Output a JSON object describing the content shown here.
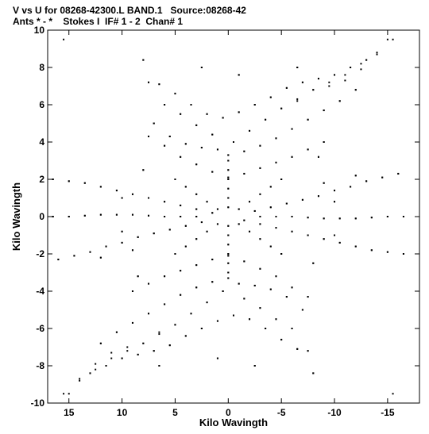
{
  "title": "V vs U for 08268-42300.L BAND.1   Source:08268-42",
  "subtitle": "Ants * - *    Stokes I  IF# 1 - 2  Chan# 1",
  "chart_data": {
    "type": "scatter",
    "xlabel": "Kilo Wavingth",
    "ylabel": "Kilo Wavingth",
    "xlim": [
      17,
      -18
    ],
    "ylim": [
      -10,
      10
    ],
    "x_reversed": true,
    "grid": false,
    "xticks": [
      15,
      10,
      5,
      0,
      -5,
      -10,
      -15
    ],
    "xtick_labels": [
      "15",
      "10",
      "5",
      "0",
      "-5",
      "-10",
      "-15"
    ],
    "yticks": [
      -10,
      -8,
      -6,
      -4,
      -2,
      0,
      2,
      4,
      6,
      8,
      10
    ],
    "ytick_labels": [
      "-10",
      "-8",
      "-6",
      "-4",
      "-2",
      "0",
      "2",
      "4",
      "6",
      "8",
      "10"
    ],
    "marker_color": "#000000",
    "points": [
      [
        -15.5,
        9.5
      ],
      [
        -14.0,
        8.7
      ],
      [
        -12.5,
        7.9
      ],
      [
        -11.0,
        7.3
      ],
      [
        -9.5,
        7.0
      ],
      [
        -8.0,
        6.8
      ],
      [
        -6.5,
        6.2
      ],
      [
        -5.0,
        5.8
      ],
      [
        -3.5,
        5.2
      ],
      [
        -2.0,
        4.6
      ],
      [
        -0.5,
        4.0
      ],
      [
        1.0,
        3.6
      ],
      [
        2.5,
        3.7
      ],
      [
        4.0,
        3.9
      ],
      [
        5.5,
        4.3
      ],
      [
        7.0,
        5.0
      ],
      [
        8.0,
        8.4
      ],
      [
        7.5,
        7.2
      ],
      [
        -13.0,
        8.4
      ],
      [
        -11.5,
        8.0
      ],
      [
        -10.0,
        7.6
      ],
      [
        -8.5,
        7.4
      ],
      [
        -7.0,
        7.2
      ],
      [
        -5.5,
        6.9
      ],
      [
        -4.0,
        6.4
      ],
      [
        -2.5,
        6.0
      ],
      [
        -1.0,
        5.6
      ],
      [
        0.5,
        5.3
      ],
      [
        2.0,
        5.5
      ],
      [
        3.5,
        6.0
      ],
      [
        5.0,
        6.6
      ],
      [
        6.5,
        7.1
      ],
      [
        -12.0,
        6.8
      ],
      [
        -10.5,
        6.2
      ],
      [
        -9.0,
        5.7
      ],
      [
        -7.5,
        5.2
      ],
      [
        -6.0,
        4.7
      ],
      [
        -4.5,
        4.2
      ],
      [
        -3.0,
        3.8
      ],
      [
        -1.5,
        3.5
      ],
      [
        0.0,
        3.3
      ],
      [
        1.5,
        4.4
      ],
      [
        3.0,
        4.9
      ],
      [
        4.5,
        5.5
      ],
      [
        6.0,
        6.0
      ],
      [
        -9.0,
        4.0
      ],
      [
        -7.5,
        3.6
      ],
      [
        -6.0,
        3.2
      ],
      [
        -4.5,
        2.9
      ],
      [
        -3.0,
        2.6
      ],
      [
        -1.5,
        2.3
      ],
      [
        0.0,
        2.1
      ],
      [
        1.5,
        2.4
      ],
      [
        3.0,
        2.8
      ],
      [
        4.5,
        3.2
      ],
      [
        6.0,
        3.8
      ],
      [
        7.5,
        4.3
      ],
      [
        -15.5,
        -9.5
      ],
      [
        15.0,
        -9.5
      ],
      [
        14.0,
        -8.8
      ],
      [
        12.5,
        -8.2
      ],
      [
        11.0,
        -7.6
      ],
      [
        9.5,
        -7.2
      ],
      [
        8.0,
        -6.8
      ],
      [
        6.5,
        -6.3
      ],
      [
        5.0,
        -5.8
      ],
      [
        3.5,
        -5.2
      ],
      [
        2.0,
        -4.6
      ],
      [
        0.5,
        -4.0
      ],
      [
        -1.0,
        -3.6
      ],
      [
        -2.5,
        -3.7
      ],
      [
        -4.0,
        -3.9
      ],
      [
        -5.5,
        -4.3
      ],
      [
        -7.0,
        -5.0
      ],
      [
        -8.0,
        -8.4
      ],
      [
        -7.5,
        -7.2
      ],
      [
        13.0,
        -8.4
      ],
      [
        11.5,
        -8.0
      ],
      [
        10.0,
        -7.6
      ],
      [
        8.5,
        -7.4
      ],
      [
        7.0,
        -7.2
      ],
      [
        5.5,
        -6.9
      ],
      [
        4.0,
        -6.4
      ],
      [
        2.5,
        -6.0
      ],
      [
        1.0,
        -5.6
      ],
      [
        -0.5,
        -5.3
      ],
      [
        -2.0,
        -5.5
      ],
      [
        -3.5,
        -6.0
      ],
      [
        -5.0,
        -6.6
      ],
      [
        -6.5,
        -7.1
      ],
      [
        12.0,
        -6.8
      ],
      [
        10.5,
        -6.2
      ],
      [
        9.0,
        -5.7
      ],
      [
        7.5,
        -5.2
      ],
      [
        6.0,
        -4.7
      ],
      [
        4.5,
        -4.2
      ],
      [
        3.0,
        -3.8
      ],
      [
        1.5,
        -3.5
      ],
      [
        0.0,
        -3.3
      ],
      [
        -1.5,
        -4.4
      ],
      [
        -3.0,
        -4.9
      ],
      [
        -4.5,
        -5.5
      ],
      [
        -6.0,
        -6.0
      ],
      [
        9.0,
        -4.0
      ],
      [
        7.5,
        -3.6
      ],
      [
        6.0,
        -3.2
      ],
      [
        4.5,
        -2.9
      ],
      [
        3.0,
        -2.6
      ],
      [
        1.5,
        -2.3
      ],
      [
        0.0,
        -2.1
      ],
      [
        -1.5,
        -2.4
      ],
      [
        -3.0,
        -2.8
      ],
      [
        -4.5,
        -3.2
      ],
      [
        -6.0,
        -3.8
      ],
      [
        -7.5,
        -4.3
      ],
      [
        16.5,
        2.0
      ],
      [
        15.0,
        1.9
      ],
      [
        13.5,
        1.8
      ],
      [
        12.0,
        1.6
      ],
      [
        10.5,
        1.4
      ],
      [
        9.0,
        1.2
      ],
      [
        7.5,
        1.0
      ],
      [
        6.0,
        0.8
      ],
      [
        4.5,
        0.6
      ],
      [
        3.0,
        0.4
      ],
      [
        1.5,
        0.2
      ],
      [
        -1.5,
        -0.2
      ],
      [
        -3.0,
        -0.4
      ],
      [
        -4.5,
        -0.6
      ],
      [
        -6.0,
        -0.8
      ],
      [
        -7.5,
        -1.0
      ],
      [
        -9.0,
        -1.2
      ],
      [
        -10.5,
        -1.4
      ],
      [
        -12.0,
        -1.6
      ],
      [
        -13.5,
        -1.8
      ],
      [
        -15.0,
        -1.9
      ],
      [
        -16.5,
        -2.0
      ],
      [
        16.5,
        0.0
      ],
      [
        15.0,
        0.0
      ],
      [
        13.5,
        0.05
      ],
      [
        12.0,
        0.1
      ],
      [
        10.5,
        0.1
      ],
      [
        9.0,
        0.1
      ],
      [
        7.5,
        0.05
      ],
      [
        6.0,
        0.0
      ],
      [
        4.5,
        0.0
      ],
      [
        3.0,
        0.0
      ],
      [
        -3.0,
        0.0
      ],
      [
        -4.5,
        0.0
      ],
      [
        -6.0,
        0.0
      ],
      [
        -7.5,
        -0.05
      ],
      [
        -9.0,
        -0.1
      ],
      [
        -10.5,
        -0.1
      ],
      [
        -12.0,
        -0.1
      ],
      [
        -13.5,
        -0.05
      ],
      [
        -15.0,
        0.0
      ],
      [
        -16.5,
        0.0
      ],
      [
        16.0,
        -2.3
      ],
      [
        14.5,
        -2.1
      ],
      [
        13.0,
        -1.9
      ],
      [
        11.5,
        -1.6
      ],
      [
        10.0,
        -1.4
      ],
      [
        8.5,
        -1.1
      ],
      [
        7.0,
        -0.9
      ],
      [
        5.5,
        -0.7
      ],
      [
        4.0,
        -0.5
      ],
      [
        2.5,
        -0.3
      ],
      [
        -2.5,
        0.3
      ],
      [
        -4.0,
        0.5
      ],
      [
        -5.5,
        0.7
      ],
      [
        -7.0,
        0.9
      ],
      [
        -8.5,
        1.1
      ],
      [
        -10.0,
        1.4
      ],
      [
        -11.5,
        1.6
      ],
      [
        -13.0,
        1.9
      ],
      [
        -14.5,
        2.1
      ],
      [
        -16.0,
        2.3
      ],
      [
        5.0,
        2.0
      ],
      [
        4.0,
        1.6
      ],
      [
        3.0,
        1.2
      ],
      [
        2.0,
        0.8
      ],
      [
        1.0,
        0.4
      ],
      [
        -1.0,
        -0.4
      ],
      [
        -2.0,
        -0.8
      ],
      [
        -3.0,
        -1.2
      ],
      [
        -4.0,
        -1.6
      ],
      [
        -5.0,
        -2.0
      ],
      [
        -5.0,
        2.0
      ],
      [
        -4.0,
        1.6
      ],
      [
        -3.0,
        1.2
      ],
      [
        -2.0,
        0.8
      ],
      [
        -1.0,
        0.4
      ],
      [
        1.0,
        -0.4
      ],
      [
        2.0,
        -0.8
      ],
      [
        3.0,
        -1.2
      ],
      [
        4.0,
        -1.6
      ],
      [
        5.0,
        -2.0
      ],
      [
        0.0,
        3.0
      ],
      [
        0.0,
        2.5
      ],
      [
        0.0,
        2.0
      ],
      [
        0.0,
        1.5
      ],
      [
        0.0,
        1.0
      ],
      [
        0.0,
        0.5
      ],
      [
        0.0,
        -0.5
      ],
      [
        0.0,
        -1.0
      ],
      [
        0.0,
        -1.5
      ],
      [
        0.0,
        -2.0
      ],
      [
        0.0,
        -2.5
      ],
      [
        0.0,
        -3.0
      ],
      [
        8.0,
        2.5
      ],
      [
        -8.0,
        -2.5
      ],
      [
        8.5,
        -3.2
      ],
      [
        -8.5,
        3.2
      ],
      [
        10.0,
        1.0
      ],
      [
        -10.0,
        -1.0
      ],
      [
        10.0,
        -0.8
      ],
      [
        -10.0,
        0.8
      ],
      [
        12.0,
        -2.2
      ],
      [
        -12.0,
        2.2
      ],
      [
        2.5,
        8.0
      ],
      [
        -2.5,
        -8.0
      ],
      [
        -1.0,
        7.6
      ],
      [
        1.0,
        -7.6
      ],
      [
        6.5,
        -8.0
      ],
      [
        -6.5,
        8.0
      ],
      [
        -9.0,
        1.8
      ],
      [
        9.0,
        -1.8
      ]
    ]
  }
}
